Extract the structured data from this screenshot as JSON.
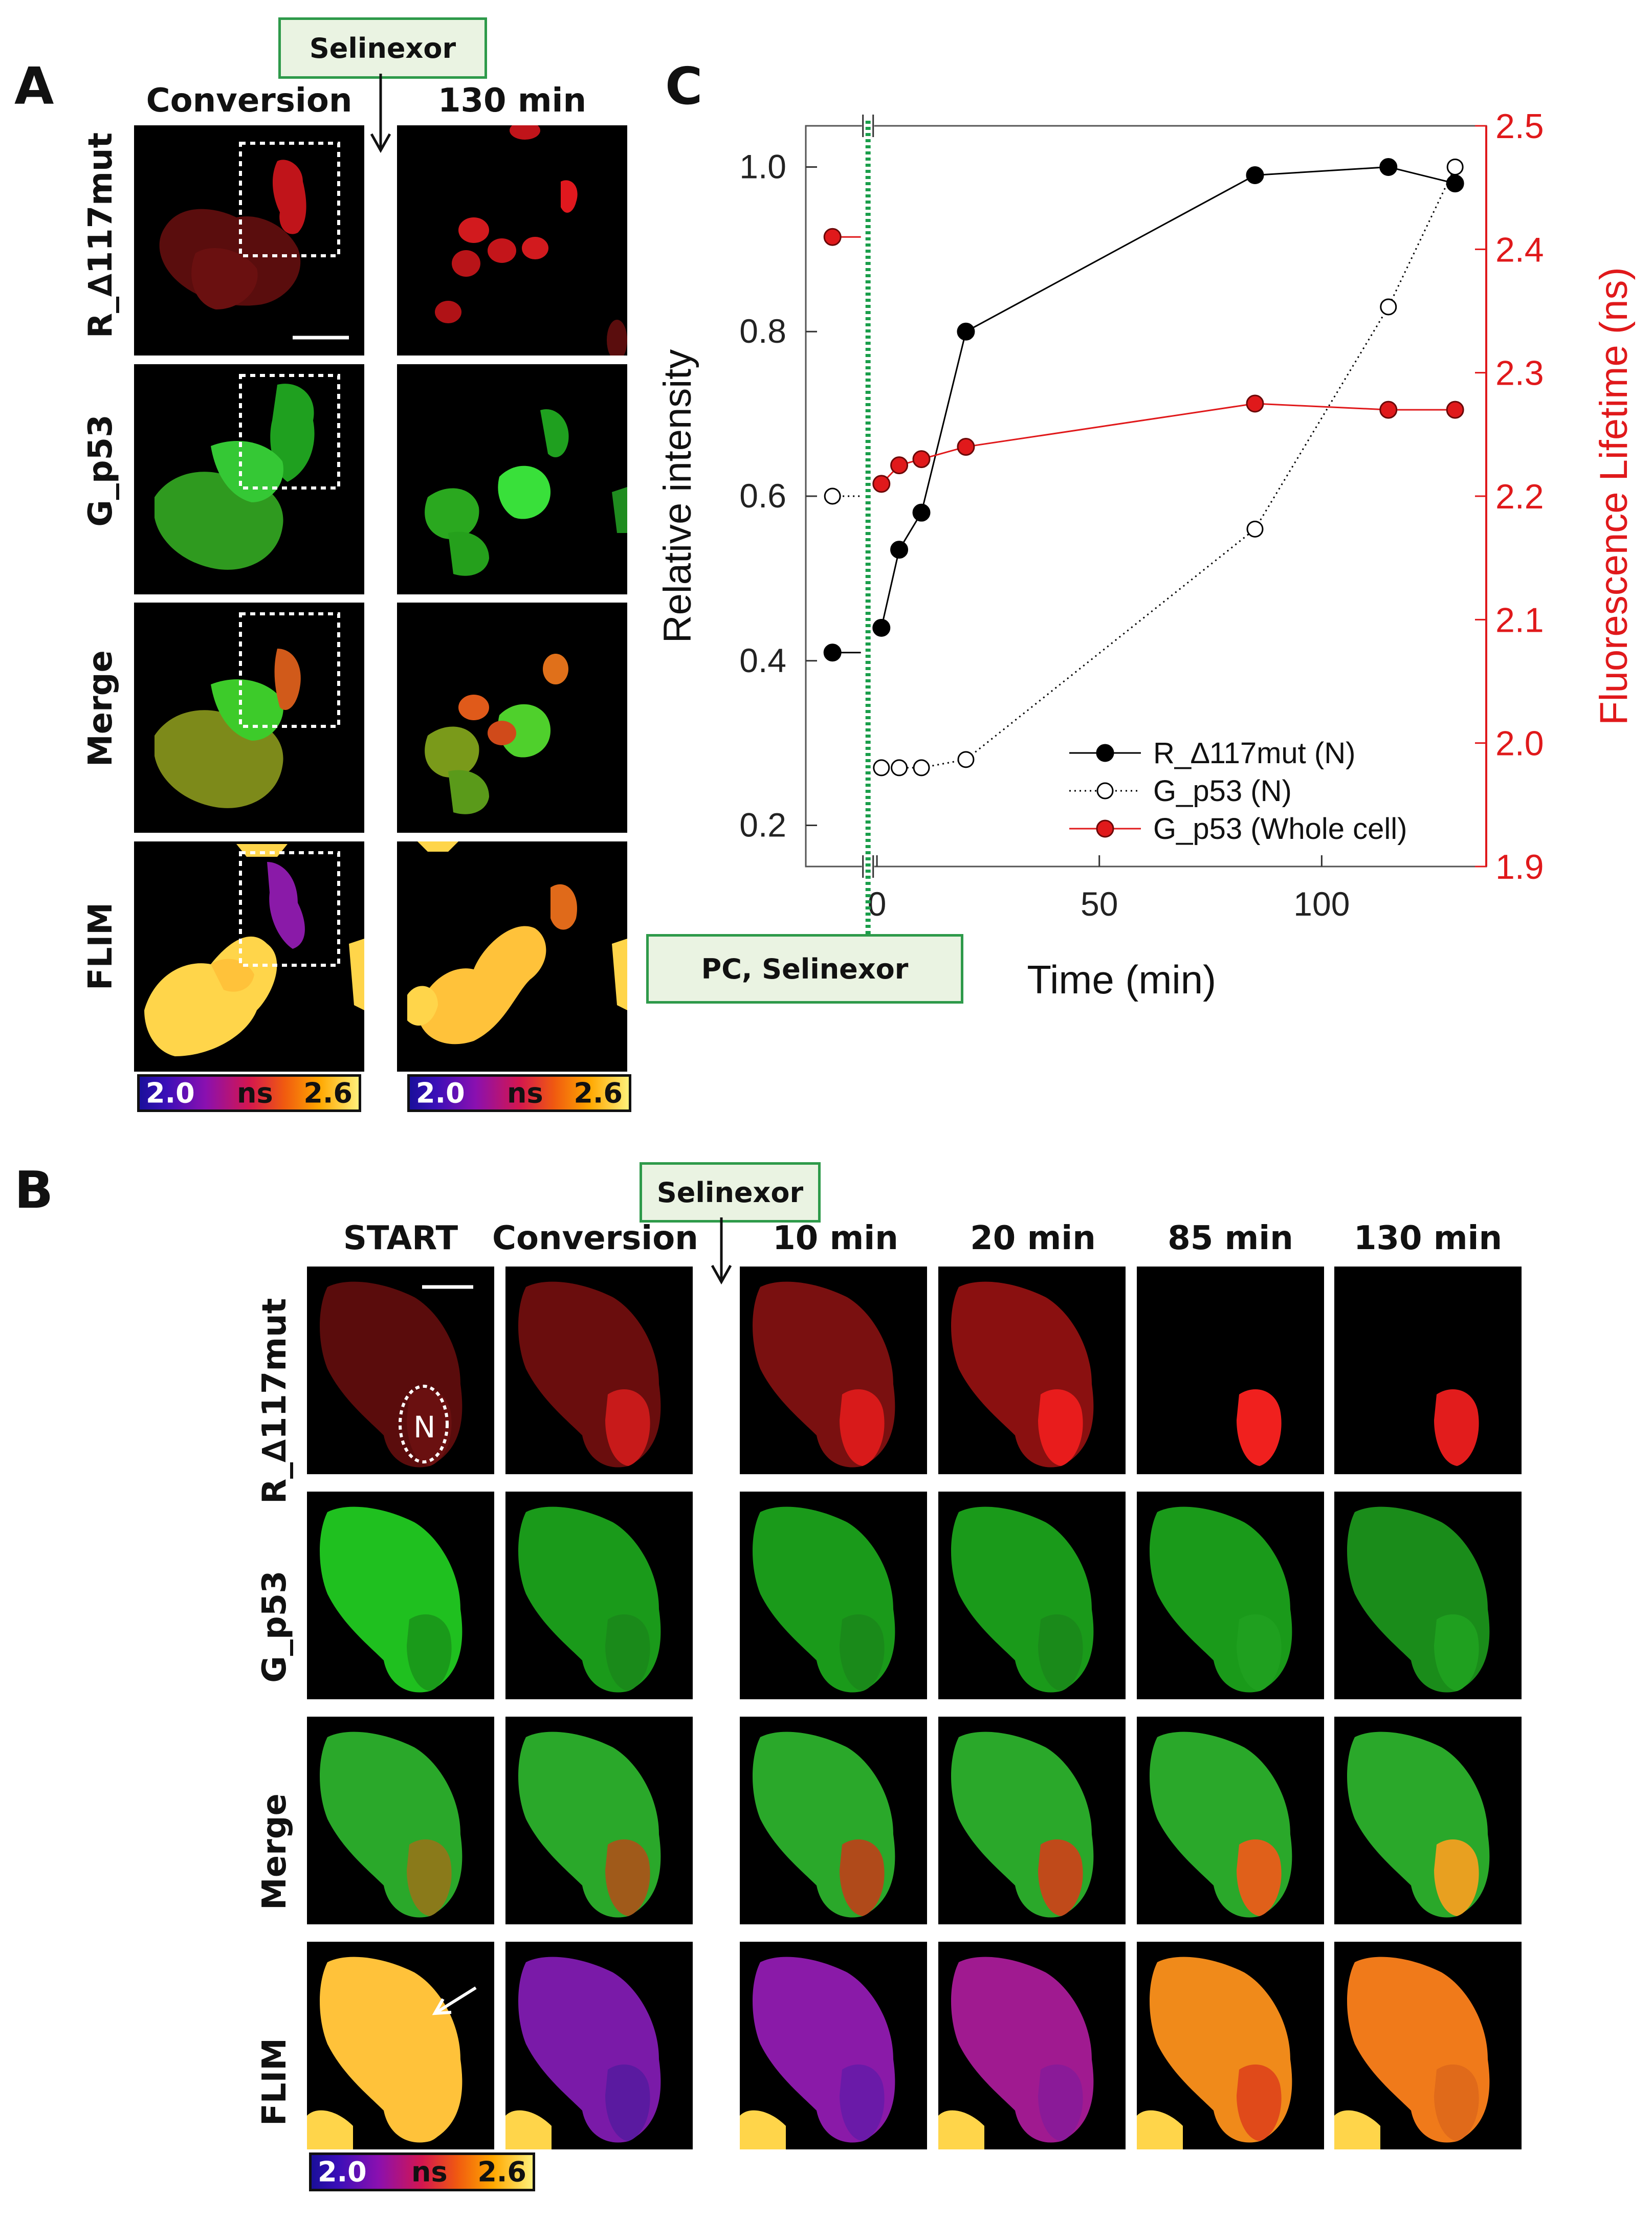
{
  "panels": {
    "a": {
      "letter": "A",
      "drug_tag": "Selinexor",
      "columns": [
        "Conversion",
        "130 min"
      ],
      "rows": [
        "R_∆117mut",
        "G_p53",
        "Merge",
        "FLIM"
      ],
      "colorbar": {
        "min": "2.0",
        "unit": "ns",
        "max": "2.6"
      }
    },
    "b": {
      "letter": "B",
      "drug_tag": "Selinexor",
      "columns": [
        "START",
        "Conversion",
        "10 min",
        "20 min",
        "85 min",
        "130 min"
      ],
      "rows": [
        "R_∆117mut",
        "G_p53",
        "Merge",
        "FLIM"
      ],
      "nucleus_label": "N",
      "colorbar": {
        "min": "2.0",
        "unit": "ns",
        "max": "2.6"
      }
    },
    "c": {
      "letter": "C",
      "pc_tag": "PC, Selinexor"
    }
  },
  "chart_data": {
    "type": "line",
    "xlabel": "Time (min)",
    "ylabel": "Relative intensity",
    "y2label": "Fluorescence Lifetime (ns)",
    "xlim": [
      -16,
      137
    ],
    "ylim": [
      0.15,
      1.05
    ],
    "y2lim": [
      1.9,
      2.5
    ],
    "xticks": [
      0,
      50,
      100
    ],
    "yticks": [
      0.2,
      0.4,
      0.6,
      0.8,
      1.0
    ],
    "yticklabels": [
      "0.2",
      "0.4",
      "0.6",
      "0.8",
      "1.0"
    ],
    "y2ticks": [
      1.9,
      2.0,
      2.1,
      2.2,
      2.3,
      2.4,
      2.5
    ],
    "y2ticklabels": [
      "1.9",
      "2.0",
      "2.1",
      "2.2",
      "2.3",
      "2.4",
      "2.5"
    ],
    "axis_break_x": -2,
    "treatment_line_x": -2,
    "legend_position": "bottom-right",
    "series": [
      {
        "name": "R_∆117mut (N)",
        "axis": "left",
        "marker": "filled",
        "color": "#000000",
        "line": "solid",
        "x": [
          -10,
          1,
          5,
          10,
          20,
          85,
          115,
          130
        ],
        "y": [
          0.41,
          0.44,
          0.535,
          0.58,
          0.8,
          0.99,
          1.0,
          0.98
        ]
      },
      {
        "name": "G_p53 (N)",
        "axis": "left",
        "marker": "open",
        "color": "#000000",
        "line": "dotted",
        "x": [
          -10,
          1,
          5,
          10,
          20,
          85,
          115,
          130
        ],
        "y": [
          0.6,
          0.27,
          0.27,
          0.27,
          0.28,
          0.56,
          0.83,
          1.0
        ]
      },
      {
        "name": "G_p53 (Whole cell)",
        "axis": "right",
        "marker": "filled",
        "color": "#e0191b",
        "line": "solid",
        "x": [
          -10,
          1,
          5,
          10,
          20,
          85,
          115,
          130
        ],
        "y": [
          2.41,
          2.21,
          2.225,
          2.23,
          2.24,
          2.275,
          2.27,
          2.27
        ]
      }
    ]
  },
  "colors": {
    "tag_border": "#2e9a4a",
    "tag_fill": "#eaf3e2",
    "lifetime_axis": "#e0191b",
    "treatment_line": "#1a9e4a"
  }
}
